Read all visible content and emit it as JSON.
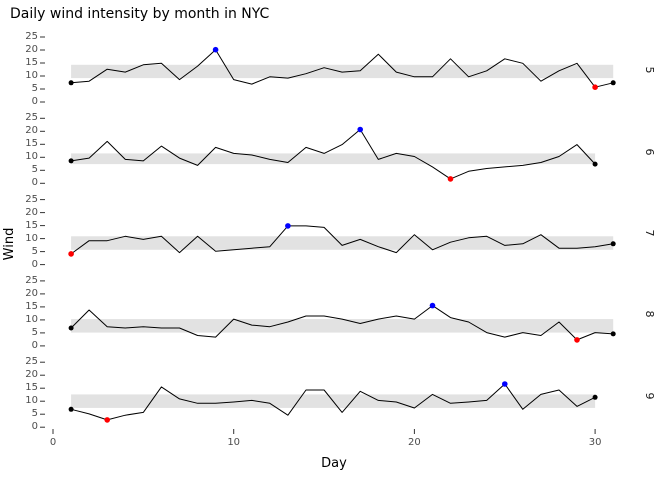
{
  "title": "Daily wind intensity by month in NYC",
  "chart_data": {
    "type": "line",
    "title": "Daily wind intensity by month in NYC",
    "xlabel": "Day",
    "ylabel": "Wind",
    "x_ticks": [
      0,
      10,
      20,
      30
    ],
    "y_ticks": [
      0,
      5,
      10,
      15,
      20,
      25
    ],
    "xlim": [
      0,
      31.5
    ],
    "ylim_per_facet": [
      0,
      25
    ],
    "grid": false,
    "legend": "none",
    "facet_label_side": "right",
    "colors": {
      "line": "#000000",
      "band": "#e2e2e2",
      "max_point": "#0000ff",
      "min_point": "#ff0000",
      "endpoint": "#000000",
      "tick_text": "#4d4d4d",
      "axis_text": "#000000",
      "strip_text": "#1a1a1a"
    },
    "facets": [
      {
        "label": "5",
        "band": [
          9.2,
          14.3
        ],
        "max_day": 9,
        "min_day": 30,
        "values": [
          7.4,
          8.0,
          12.6,
          11.5,
          14.3,
          14.9,
          8.6,
          13.8,
          20.1,
          8.6,
          6.9,
          9.7,
          9.2,
          10.9,
          13.2,
          11.5,
          12.0,
          18.4,
          11.5,
          9.7,
          9.7,
          16.6,
          9.7,
          12.0,
          16.6,
          14.9,
          8.0,
          12.0,
          14.9,
          5.7,
          7.4
        ]
      },
      {
        "label": "6",
        "band": [
          7.4,
          11.5
        ],
        "max_day": 17,
        "min_day": 22,
        "values": [
          8.6,
          9.7,
          16.1,
          9.2,
          8.6,
          14.3,
          9.7,
          6.9,
          13.8,
          11.5,
          10.9,
          9.2,
          8.0,
          13.8,
          11.5,
          14.9,
          20.7,
          9.2,
          11.5,
          10.3,
          6.3,
          1.7,
          4.6,
          5.7,
          6.3,
          6.9,
          8.0,
          10.3,
          14.9,
          7.4
        ]
      },
      {
        "label": "7",
        "band": [
          5.7,
          10.9
        ],
        "max_day": 13,
        "min_day": 1,
        "values": [
          4.1,
          9.2,
          9.2,
          10.9,
          9.7,
          10.9,
          4.6,
          10.9,
          5.1,
          5.7,
          6.3,
          6.9,
          14.9,
          14.9,
          14.3,
          7.4,
          9.7,
          6.9,
          4.6,
          11.5,
          5.7,
          8.6,
          10.3,
          10.9,
          7.4,
          8.0,
          11.5,
          6.3,
          6.3,
          6.9,
          8.0
        ]
      },
      {
        "label": "8",
        "band": [
          5.1,
          10.3
        ],
        "max_day": 21,
        "min_day": 29,
        "values": [
          6.9,
          13.8,
          7.4,
          6.9,
          7.4,
          6.9,
          6.9,
          4.0,
          3.4,
          10.3,
          8.0,
          7.4,
          9.2,
          11.5,
          11.5,
          10.3,
          8.6,
          10.3,
          11.5,
          10.3,
          15.5,
          10.9,
          9.2,
          5.1,
          3.4,
          5.1,
          4.0,
          9.2,
          2.3,
          5.1,
          4.6
        ]
      },
      {
        "label": "9",
        "band": [
          7.4,
          12.6
        ],
        "max_day": 25,
        "min_day": 3,
        "values": [
          6.9,
          5.1,
          2.8,
          4.6,
          5.7,
          15.5,
          10.9,
          9.2,
          9.2,
          9.7,
          10.3,
          9.2,
          4.6,
          14.3,
          14.3,
          5.7,
          13.8,
          10.3,
          9.7,
          7.4,
          12.6,
          9.2,
          9.7,
          10.3,
          16.6,
          6.9,
          12.6,
          14.3,
          8.0,
          11.5
        ]
      }
    ]
  }
}
